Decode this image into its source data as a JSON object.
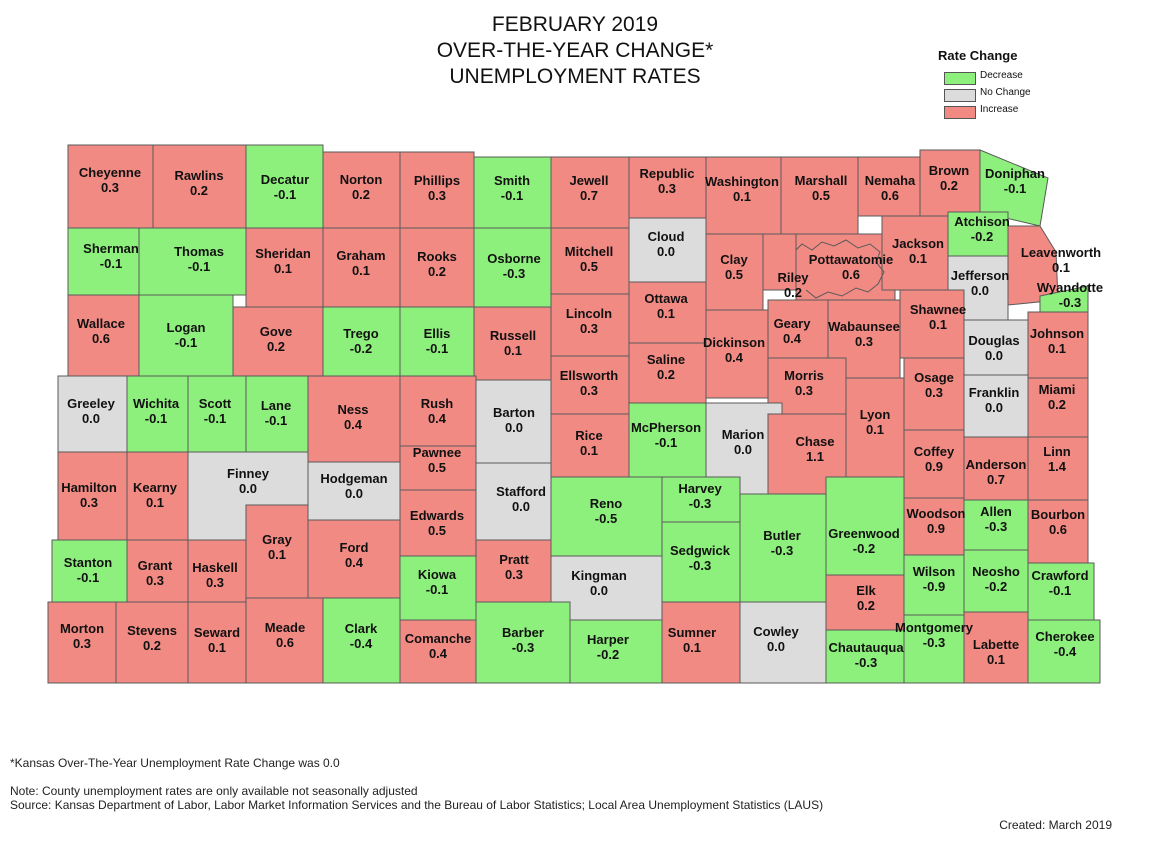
{
  "title": {
    "line1": "FEBRUARY 2019",
    "line2": "OVER-THE-YEAR CHANGE*",
    "line3": "UNEMPLOYMENT RATES"
  },
  "legend": {
    "title": "Rate Change",
    "items": [
      {
        "label": "Decrease",
        "color": "#8ef07c"
      },
      {
        "label": "No Change",
        "color": "#dcdcdc"
      },
      {
        "label": "Increase",
        "color": "#f28a84"
      }
    ]
  },
  "colors": {
    "decrease": "#8ef07c",
    "nochange": "#dcdcdc",
    "increase": "#f28a84",
    "border": "#5a5a5a"
  },
  "counties": [
    {
      "name": "Cheyenne",
      "value": "0.3"
    },
    {
      "name": "Rawlins",
      "value": "0.2"
    },
    {
      "name": "Decatur",
      "value": "-0.1"
    },
    {
      "name": "Norton",
      "value": "0.2"
    },
    {
      "name": "Phillips",
      "value": "0.3"
    },
    {
      "name": "Smith",
      "value": "-0.1"
    },
    {
      "name": "Jewell",
      "value": "0.7"
    },
    {
      "name": "Republic",
      "value": "0.3"
    },
    {
      "name": "Washington",
      "value": "0.1"
    },
    {
      "name": "Marshall",
      "value": "0.5"
    },
    {
      "name": "Nemaha",
      "value": "0.6"
    },
    {
      "name": "Brown",
      "value": "0.2"
    },
    {
      "name": "Doniphan",
      "value": "-0.1"
    },
    {
      "name": "Sherman",
      "value": "-0.1"
    },
    {
      "name": "Thomas",
      "value": "-0.1"
    },
    {
      "name": "Sheridan",
      "value": "0.1"
    },
    {
      "name": "Graham",
      "value": "0.1"
    },
    {
      "name": "Rooks",
      "value": "0.2"
    },
    {
      "name": "Osborne",
      "value": "-0.3"
    },
    {
      "name": "Mitchell",
      "value": "0.5"
    },
    {
      "name": "Cloud",
      "value": "0.0"
    },
    {
      "name": "Clay",
      "value": "0.5"
    },
    {
      "name": "Riley",
      "value": "0.2"
    },
    {
      "name": "Pottawatomie",
      "value": "0.6"
    },
    {
      "name": "Jackson",
      "value": "0.1"
    },
    {
      "name": "Atchison",
      "value": "-0.2"
    },
    {
      "name": "Jefferson",
      "value": "0.0"
    },
    {
      "name": "Leavenworth",
      "value": "0.1"
    },
    {
      "name": "Wyandotte",
      "value": "-0.3"
    },
    {
      "name": "Wallace",
      "value": "0.6"
    },
    {
      "name": "Logan",
      "value": "-0.1"
    },
    {
      "name": "Gove",
      "value": "0.2"
    },
    {
      "name": "Trego",
      "value": "-0.2"
    },
    {
      "name": "Ellis",
      "value": "-0.1"
    },
    {
      "name": "Russell",
      "value": "0.1"
    },
    {
      "name": "Lincoln",
      "value": "0.3"
    },
    {
      "name": "Ottawa",
      "value": "0.1"
    },
    {
      "name": "Dickinson",
      "value": "0.4"
    },
    {
      "name": "Geary",
      "value": "0.4"
    },
    {
      "name": "Wabaunsee",
      "value": "0.3"
    },
    {
      "name": "Shawnee",
      "value": "0.1"
    },
    {
      "name": "Douglas",
      "value": "0.0"
    },
    {
      "name": "Johnson",
      "value": "0.1"
    },
    {
      "name": "Saline",
      "value": "0.2"
    },
    {
      "name": "Ellsworth",
      "value": "0.3"
    },
    {
      "name": "Morris",
      "value": "0.3"
    },
    {
      "name": "Greeley",
      "value": "0.0"
    },
    {
      "name": "Wichita",
      "value": "-0.1"
    },
    {
      "name": "Scott",
      "value": "-0.1"
    },
    {
      "name": "Lane",
      "value": "-0.1"
    },
    {
      "name": "Ness",
      "value": "0.4"
    },
    {
      "name": "Rush",
      "value": "0.4"
    },
    {
      "name": "Barton",
      "value": "0.0"
    },
    {
      "name": "Rice",
      "value": "0.1"
    },
    {
      "name": "McPherson",
      "value": "-0.1"
    },
    {
      "name": "Marion",
      "value": "0.0"
    },
    {
      "name": "Chase",
      "value": "1.1"
    },
    {
      "name": "Lyon",
      "value": "0.1"
    },
    {
      "name": "Osage",
      "value": "0.3"
    },
    {
      "name": "Franklin",
      "value": "0.0"
    },
    {
      "name": "Miami",
      "value": "0.2"
    },
    {
      "name": "Hamilton",
      "value": "0.3"
    },
    {
      "name": "Kearny",
      "value": "0.1"
    },
    {
      "name": "Finney",
      "value": "0.0"
    },
    {
      "name": "Hodgeman",
      "value": "0.0"
    },
    {
      "name": "Pawnee",
      "value": "0.5"
    },
    {
      "name": "Stafford",
      "value": "0.0"
    },
    {
      "name": "Reno",
      "value": "-0.5"
    },
    {
      "name": "Harvey",
      "value": "-0.3"
    },
    {
      "name": "Butler",
      "value": "-0.3"
    },
    {
      "name": "Greenwood",
      "value": "-0.2"
    },
    {
      "name": "Coffey",
      "value": "0.9"
    },
    {
      "name": "Anderson",
      "value": "0.7"
    },
    {
      "name": "Linn",
      "value": "1.4"
    },
    {
      "name": "Gray",
      "value": "0.1"
    },
    {
      "name": "Ford",
      "value": "0.4"
    },
    {
      "name": "Edwards",
      "value": "0.5"
    },
    {
      "name": "Sedgwick",
      "value": "-0.3"
    },
    {
      "name": "Woodson",
      "value": "0.9"
    },
    {
      "name": "Allen",
      "value": "-0.3"
    },
    {
      "name": "Bourbon",
      "value": "0.6"
    },
    {
      "name": "Stanton",
      "value": "-0.1"
    },
    {
      "name": "Grant",
      "value": "0.3"
    },
    {
      "name": "Haskell",
      "value": "0.3"
    },
    {
      "name": "Kiowa",
      "value": "-0.1"
    },
    {
      "name": "Pratt",
      "value": "0.3"
    },
    {
      "name": "Kingman",
      "value": "0.0"
    },
    {
      "name": "Elk",
      "value": "0.2"
    },
    {
      "name": "Wilson",
      "value": "-0.9"
    },
    {
      "name": "Neosho",
      "value": "-0.2"
    },
    {
      "name": "Crawford",
      "value": "-0.1"
    },
    {
      "name": "Morton",
      "value": "0.3"
    },
    {
      "name": "Stevens",
      "value": "0.2"
    },
    {
      "name": "Seward",
      "value": "0.1"
    },
    {
      "name": "Meade",
      "value": "0.6"
    },
    {
      "name": "Clark",
      "value": "-0.4"
    },
    {
      "name": "Comanche",
      "value": "0.4"
    },
    {
      "name": "Barber",
      "value": "-0.3"
    },
    {
      "name": "Harper",
      "value": "-0.2"
    },
    {
      "name": "Sumner",
      "value": "0.1"
    },
    {
      "name": "Cowley",
      "value": "0.0"
    },
    {
      "name": "Chautauqua",
      "value": "-0.3"
    },
    {
      "name": "Montgomery",
      "value": "-0.3"
    },
    {
      "name": "Labette",
      "value": "0.1"
    },
    {
      "name": "Cherokee",
      "value": "-0.4"
    }
  ],
  "notes": {
    "state": "*Kansas Over-The-Year Unemployment Rate Change was 0.0",
    "note": "Note: County unemployment rates are only available not seasonally adjusted",
    "source": "Source: Kansas Department of Labor, Labor Market Information Services and the Bureau of Labor Statistics; Local Area Unemployment Statistics (LAUS)",
    "created": "Created:  March 2019"
  }
}
